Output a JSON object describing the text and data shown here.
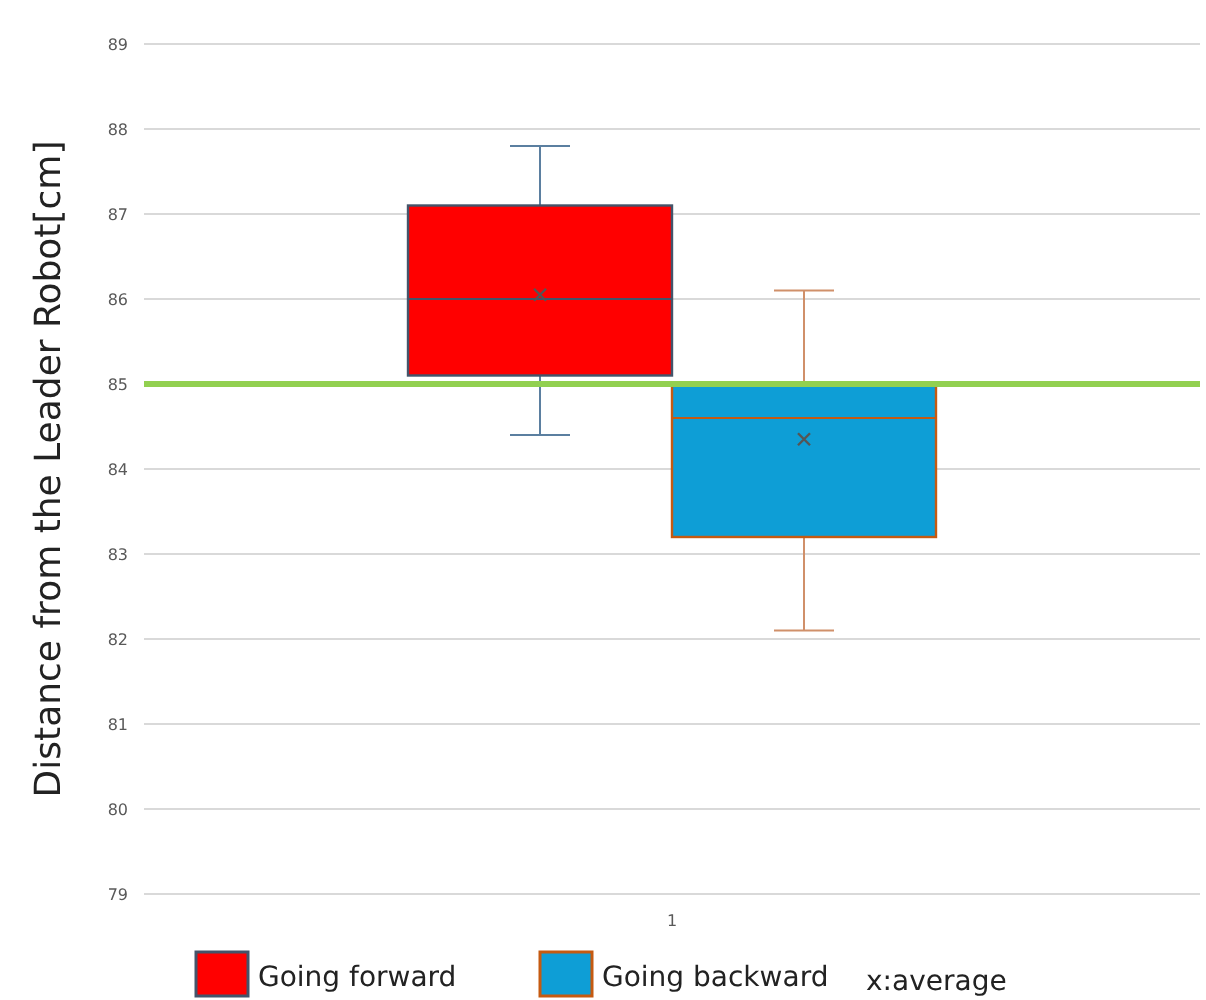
{
  "chart_data": {
    "type": "box",
    "ylabel": "Distance from the Leader Robot[cm]",
    "categories": [
      "1"
    ],
    "series": [
      {
        "name": "Going forward",
        "color": "#ff0000",
        "boxes": [
          {
            "low": 84.4,
            "q1": 85.1,
            "median": 86.0,
            "q3": 87.1,
            "high": 87.8,
            "mean": 86.05
          }
        ]
      },
      {
        "name": "Going backward",
        "color": "#0e9ed6",
        "boxes": [
          {
            "low": 82.1,
            "q1": 83.2,
            "median": 84.6,
            "q3": 85.0,
            "high": 86.1,
            "mean": 84.35
          }
        ]
      }
    ],
    "ylim": [
      79,
      89
    ],
    "yticks": [
      79,
      80,
      81,
      82,
      83,
      84,
      85,
      86,
      87,
      88,
      89
    ],
    "grid": "y",
    "legend": "bottom",
    "ref_lines": [
      {
        "axis": "y",
        "value": 85.0,
        "label": null,
        "color": "#92d050"
      }
    ],
    "annotations": [
      "x:average"
    ]
  }
}
